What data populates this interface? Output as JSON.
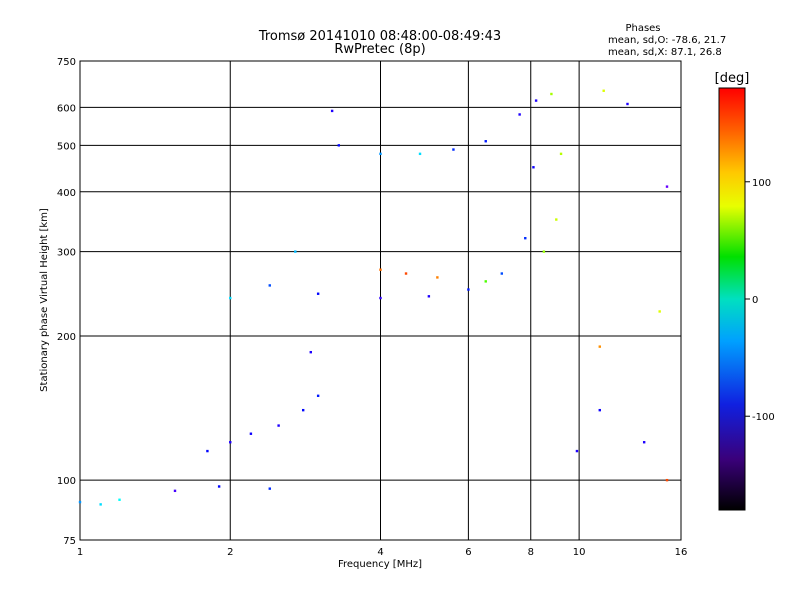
{
  "chart_data": {
    "type": "scatter",
    "title": "Tromsø 20141010 08:48:00-08:49:43",
    "subtitle": "RwPretec (8p)",
    "xlabel": "Frequency [MHz]",
    "ylabel": "Stationary phase Virtual Height [km]",
    "xscale": "log",
    "yscale": "log",
    "xlim": [
      1,
      16
    ],
    "ylim": [
      75,
      750
    ],
    "x_ticks": [
      1,
      2,
      4,
      6,
      8,
      10,
      16
    ],
    "x_tick_labels": [
      "1",
      "2",
      "4",
      "6",
      "8",
      "10",
      "16"
    ],
    "y_ticks": [
      75,
      100,
      200,
      300,
      400,
      500,
      600,
      750
    ],
    "y_tick_labels": [
      "75",
      "100",
      "200",
      "300",
      "400",
      "500",
      "600",
      "750"
    ],
    "grid": true,
    "phases_box": {
      "title": "Phases",
      "line_o": "mean, sd,O: -78.6, 21.7",
      "line_x": "mean, sd,X: 87.1, 26.8"
    },
    "colorbar": {
      "label": "[deg]",
      "range": [
        -180,
        180
      ],
      "ticks": [
        100,
        0,
        -100
      ],
      "tick_labels": [
        "100",
        "0",
        "-100"
      ]
    },
    "series": [
      {
        "values": [
          {
            "x": 1.0,
            "y": 90,
            "phase": -60
          },
          {
            "x": 1.1,
            "y": 89,
            "phase": -40
          },
          {
            "x": 1.2,
            "y": 91,
            "phase": -30
          },
          {
            "x": 1.55,
            "y": 95,
            "phase": -120
          },
          {
            "x": 1.9,
            "y": 97,
            "phase": -100
          },
          {
            "x": 2.4,
            "y": 96,
            "phase": -90
          },
          {
            "x": 1.8,
            "y": 115,
            "phase": -100
          },
          {
            "x": 2.0,
            "y": 120,
            "phase": -110
          },
          {
            "x": 2.2,
            "y": 125,
            "phase": -105
          },
          {
            "x": 2.5,
            "y": 130,
            "phase": -110
          },
          {
            "x": 2.8,
            "y": 140,
            "phase": -100
          },
          {
            "x": 3.0,
            "y": 150,
            "phase": -95
          },
          {
            "x": 2.9,
            "y": 185,
            "phase": -110
          },
          {
            "x": 2.0,
            "y": 240,
            "phase": -40
          },
          {
            "x": 2.4,
            "y": 255,
            "phase": -80
          },
          {
            "x": 2.7,
            "y": 300,
            "phase": -50
          },
          {
            "x": 3.0,
            "y": 245,
            "phase": -100
          },
          {
            "x": 4.0,
            "y": 240,
            "phase": -115
          },
          {
            "x": 5.0,
            "y": 242,
            "phase": -110
          },
          {
            "x": 6.0,
            "y": 250,
            "phase": -95
          },
          {
            "x": 7.0,
            "y": 270,
            "phase": -80
          },
          {
            "x": 7.8,
            "y": 320,
            "phase": -90
          },
          {
            "x": 8.1,
            "y": 450,
            "phase": -105
          },
          {
            "x": 8.2,
            "y": 620,
            "phase": -110
          },
          {
            "x": 4.0,
            "y": 275,
            "phase": 150
          },
          {
            "x": 4.5,
            "y": 270,
            "phase": 160
          },
          {
            "x": 5.2,
            "y": 265,
            "phase": 145
          },
          {
            "x": 6.5,
            "y": 260,
            "phase": 60
          },
          {
            "x": 8.5,
            "y": 300,
            "phase": 80
          },
          {
            "x": 9.0,
            "y": 350,
            "phase": 95
          },
          {
            "x": 9.2,
            "y": 480,
            "phase": 90
          },
          {
            "x": 8.8,
            "y": 640,
            "phase": 85
          },
          {
            "x": 3.2,
            "y": 590,
            "phase": -110
          },
          {
            "x": 3.3,
            "y": 500,
            "phase": -100
          },
          {
            "x": 4.0,
            "y": 480,
            "phase": -60
          },
          {
            "x": 4.8,
            "y": 480,
            "phase": -40
          },
          {
            "x": 5.6,
            "y": 490,
            "phase": -90
          },
          {
            "x": 6.5,
            "y": 510,
            "phase": -95
          },
          {
            "x": 7.6,
            "y": 580,
            "phase": -110
          },
          {
            "x": 9.9,
            "y": 115,
            "phase": -110
          },
          {
            "x": 11.0,
            "y": 140,
            "phase": -105
          },
          {
            "x": 13.5,
            "y": 120,
            "phase": -110
          },
          {
            "x": 11.0,
            "y": 190,
            "phase": 140
          },
          {
            "x": 14.5,
            "y": 225,
            "phase": 100
          },
          {
            "x": 15.0,
            "y": 100,
            "phase": 160
          },
          {
            "x": 11.2,
            "y": 650,
            "phase": 100
          },
          {
            "x": 12.5,
            "y": 610,
            "phase": -110
          },
          {
            "x": 15.0,
            "y": 410,
            "phase": -130
          }
        ]
      }
    ]
  }
}
